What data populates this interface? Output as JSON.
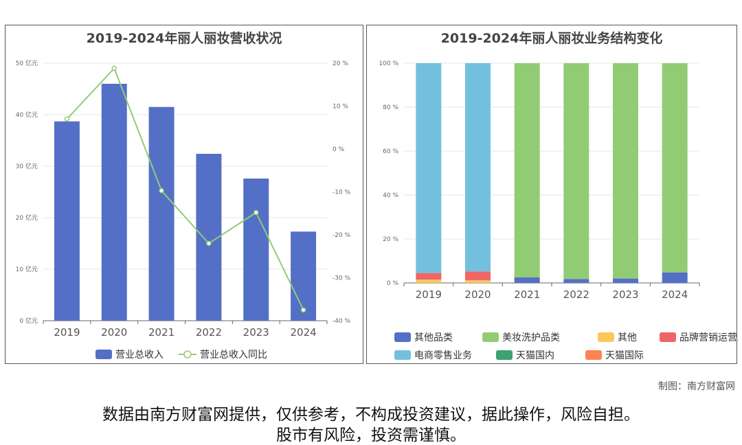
{
  "left_chart": {
    "title": "2019-2024年丽人丽妆营收状况",
    "y_ticks": [
      "0 亿元",
      "10 亿元",
      "20 亿元",
      "30 亿元",
      "40 亿元",
      "50 亿元"
    ],
    "y2_ticks": [
      "-40 %",
      "-30 %",
      "-20 %",
      "-10 %",
      "0 %",
      "10 %",
      "20 %"
    ],
    "legend": [
      "营业总收入",
      "营业总收入同比"
    ]
  },
  "right_chart": {
    "title": "2019-2024年丽人丽妆业务结构变化",
    "y_ticks": [
      "0 %",
      "20 %",
      "40 %",
      "60 %",
      "80 %",
      "100 %"
    ]
  },
  "chart_data": [
    {
      "type": "bar",
      "title": "2019-2024年丽人丽妆营收状况",
      "categories": [
        "2019",
        "2020",
        "2021",
        "2022",
        "2023",
        "2024"
      ],
      "series": [
        {
          "name": "营业总收入",
          "type": "bar",
          "axis": "left",
          "color": "#5470c6",
          "values": [
            38.7,
            46.0,
            41.5,
            32.4,
            27.6,
            17.3
          ]
        },
        {
          "name": "营业总收入同比",
          "type": "line",
          "axis": "right",
          "color": "#91cc75",
          "values": [
            7.0,
            18.8,
            -9.7,
            -22.0,
            -14.8,
            -37.5
          ]
        }
      ],
      "ylim": [
        0,
        50
      ],
      "y2lim": [
        -40,
        20
      ],
      "grid": true,
      "legend_position": "bottom"
    },
    {
      "type": "bar",
      "stacked": true,
      "title": "2019-2024年丽人丽妆业务结构变化",
      "categories": [
        "2019",
        "2020",
        "2021",
        "2022",
        "2023",
        "2024"
      ],
      "series": [
        {
          "name": "其他品类",
          "color": "#5470c6",
          "values": [
            0,
            0,
            2.5,
            1.8,
            2.0,
            4.8
          ]
        },
        {
          "name": "美妆洗护品类",
          "color": "#91cc75",
          "values": [
            0,
            0,
            97.5,
            98.2,
            98.0,
            95.2
          ]
        },
        {
          "name": "其他",
          "color": "#fac858",
          "values": [
            1.5,
            1.2,
            0,
            0,
            0,
            0
          ]
        },
        {
          "name": "品牌营销运营服务",
          "color": "#ee6666",
          "values": [
            3.0,
            4.0,
            0,
            0,
            0,
            0
          ]
        },
        {
          "name": "电商零售业务",
          "color": "#73c0de",
          "values": [
            95.5,
            94.8,
            0,
            0,
            0,
            0
          ]
        },
        {
          "name": "天猫国内",
          "color": "#3ba272",
          "values": [
            0,
            0,
            0,
            0,
            0,
            0
          ]
        },
        {
          "name": "天猫国际",
          "color": "#fc8452",
          "values": [
            0,
            0,
            0,
            0,
            0,
            0
          ]
        }
      ],
      "ylim": [
        0,
        100
      ],
      "grid": true,
      "legend_position": "bottom"
    }
  ],
  "footer": {
    "credit": "制图：南方财富网",
    "disclaimer_line1": "数据由南方财富网提供，仅供参考，不构成投资建议，据此操作，风险自担。",
    "disclaimer_line2": "股市有风险，投资需谨慎。"
  }
}
